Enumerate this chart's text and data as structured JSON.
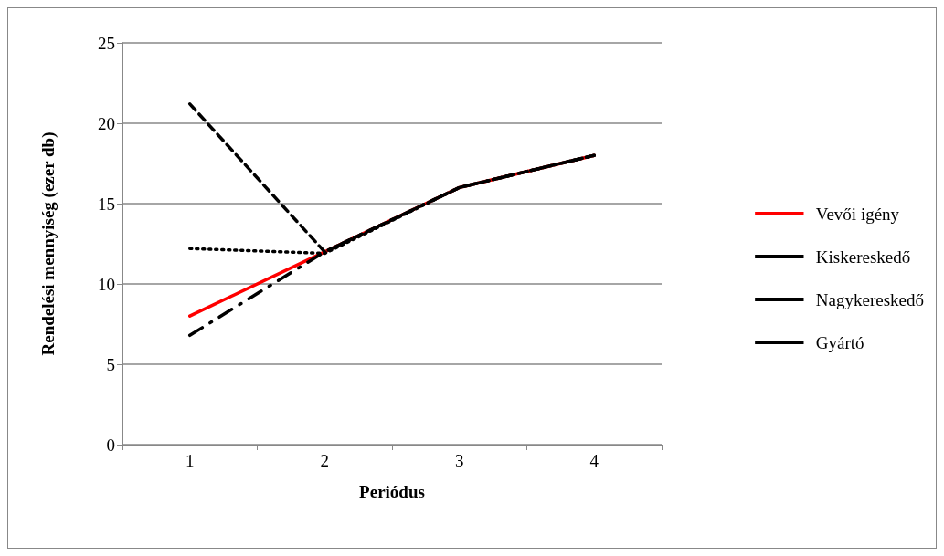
{
  "chart_data": {
    "type": "line",
    "xlabel": "Periódus",
    "ylabel": "Rendelési mennyiség (ezer db)",
    "categories": [
      "1",
      "2",
      "3",
      "4"
    ],
    "ylim": [
      0,
      25
    ],
    "yticks": [
      0,
      5,
      10,
      15,
      20,
      25
    ],
    "grid": "y",
    "legend": "right",
    "marker": "none",
    "series": [
      {
        "name": "Vevői igény",
        "color": "#ff0000",
        "line_style": "solid",
        "values": [
          8,
          12,
          16,
          18
        ]
      },
      {
        "name": "Kiskereskedő",
        "color": "#000000",
        "line_style": "dashdot",
        "values": [
          6.8,
          12,
          16,
          18
        ]
      },
      {
        "name": "Nagykereskedő",
        "color": "#000000",
        "line_style": "dotted",
        "values": [
          12.2,
          11.9,
          16,
          18
        ]
      },
      {
        "name": "Gyártó",
        "color": "#000000",
        "line_style": "dashed",
        "values": [
          21.2,
          12,
          16,
          18
        ]
      }
    ]
  }
}
